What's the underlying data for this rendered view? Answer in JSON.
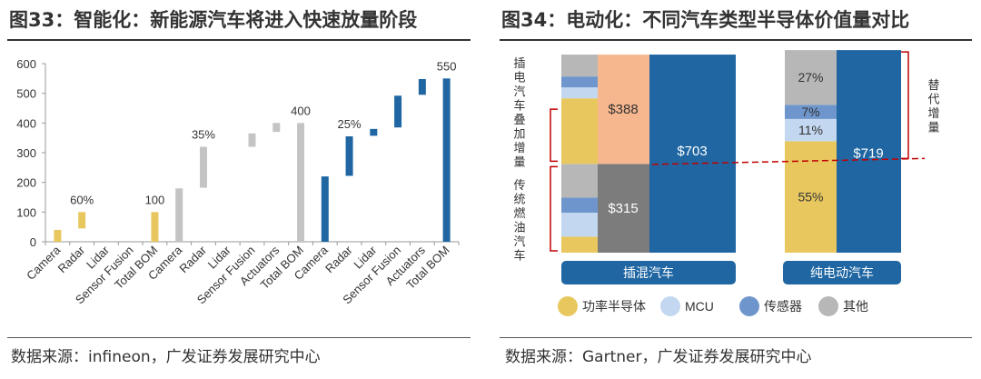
{
  "left_panel": {
    "title": "图33：智能化：新能源汽车将进入快速放量阶段",
    "source": "数据来源：infineon，广发证券发展研究中心"
  },
  "right_panel": {
    "title": "图34：电动化：不同汽车类型半导体价值量对比",
    "source": "数据来源：Gartner，广发证券发展研究中心"
  },
  "colors": {
    "yellow": "#e8c85e",
    "gray": "#c4c4c4",
    "blue": "#1f66a2",
    "light_blue": "#c3d8f0",
    "mid_blue": "#6f96cc",
    "other_gray": "#b7b7b7",
    "orange": "#f7b78e",
    "dark_gray": "#7c7c7c",
    "red": "#c00000",
    "legend_bar_blue": "#1f66a2"
  },
  "chart_data": [
    {
      "type": "bar",
      "subtype": "waterfall",
      "ylim": [
        0,
        600
      ],
      "yticks": [
        0,
        100,
        200,
        300,
        400,
        500,
        600
      ],
      "categories": [
        "Camera",
        "Radar",
        "Lidar",
        "Sensor Fusion",
        "Total BOM",
        "Camera",
        "Radar",
        "Lidar",
        "Sensor Fusion",
        "Actuators",
        "Total BOM",
        "Camera",
        "Radar",
        "Lidar",
        "Sensor Fusion",
        "Actuators",
        "Total BOM"
      ],
      "bars": [
        {
          "low": 0,
          "high": 40,
          "group": "yellow"
        },
        {
          "low": 45,
          "high": 100,
          "group": "yellow"
        },
        {
          "low": 0,
          "high": 0,
          "group": "yellow"
        },
        {
          "low": 0,
          "high": 0,
          "group": "yellow"
        },
        {
          "low": 0,
          "high": 100,
          "group": "yellow"
        },
        {
          "low": 0,
          "high": 180,
          "group": "gray"
        },
        {
          "low": 182,
          "high": 320,
          "group": "gray"
        },
        {
          "low": 0,
          "high": 0,
          "group": "gray"
        },
        {
          "low": 320,
          "high": 365,
          "group": "gray"
        },
        {
          "low": 370,
          "high": 400,
          "group": "gray"
        },
        {
          "low": 0,
          "high": 400,
          "group": "gray"
        },
        {
          "low": 0,
          "high": 220,
          "group": "blue"
        },
        {
          "low": 222,
          "high": 355,
          "group": "blue"
        },
        {
          "low": 357,
          "high": 380,
          "group": "blue"
        },
        {
          "low": 385,
          "high": 492,
          "group": "blue"
        },
        {
          "low": 495,
          "high": 548,
          "group": "blue"
        },
        {
          "low": 0,
          "high": 550,
          "group": "blue"
        }
      ],
      "annotations": [
        {
          "index": 1,
          "text": "60%"
        },
        {
          "index": 4,
          "text": "100"
        },
        {
          "index": 6,
          "text": "35%"
        },
        {
          "index": 10,
          "text": "400"
        },
        {
          "index": 12,
          "text": "25%"
        },
        {
          "index": 16,
          "text": "550"
        }
      ]
    },
    {
      "type": "bar",
      "subtype": "stacked",
      "categories": [
        "插混汽车",
        "纯电动汽车"
      ],
      "series_legend": [
        {
          "name": "功率半导体",
          "color_key": "yellow"
        },
        {
          "name": "MCU",
          "color_key": "light_blue"
        },
        {
          "name": "传感器",
          "color_key": "mid_blue"
        },
        {
          "name": "其他",
          "color_key": "other_gray"
        }
      ],
      "phev": {
        "traditional_label": "$315",
        "added_label": "$388",
        "total_label": "$703",
        "side_label_top": "插电汽车叠加增量",
        "side_label_bottom": "传统燃油汽车"
      },
      "bev": {
        "total_label": "$719",
        "side_label": "替代增量",
        "segments": [
          {
            "name": "功率半导体",
            "pct": 55,
            "label": "55%"
          },
          {
            "name": "MCU",
            "pct": 11,
            "label": "11%"
          },
          {
            "name": "传感器",
            "pct": 7,
            "label": "7%"
          },
          {
            "name": "其他",
            "pct": 27,
            "label": "27%"
          }
        ]
      }
    }
  ]
}
